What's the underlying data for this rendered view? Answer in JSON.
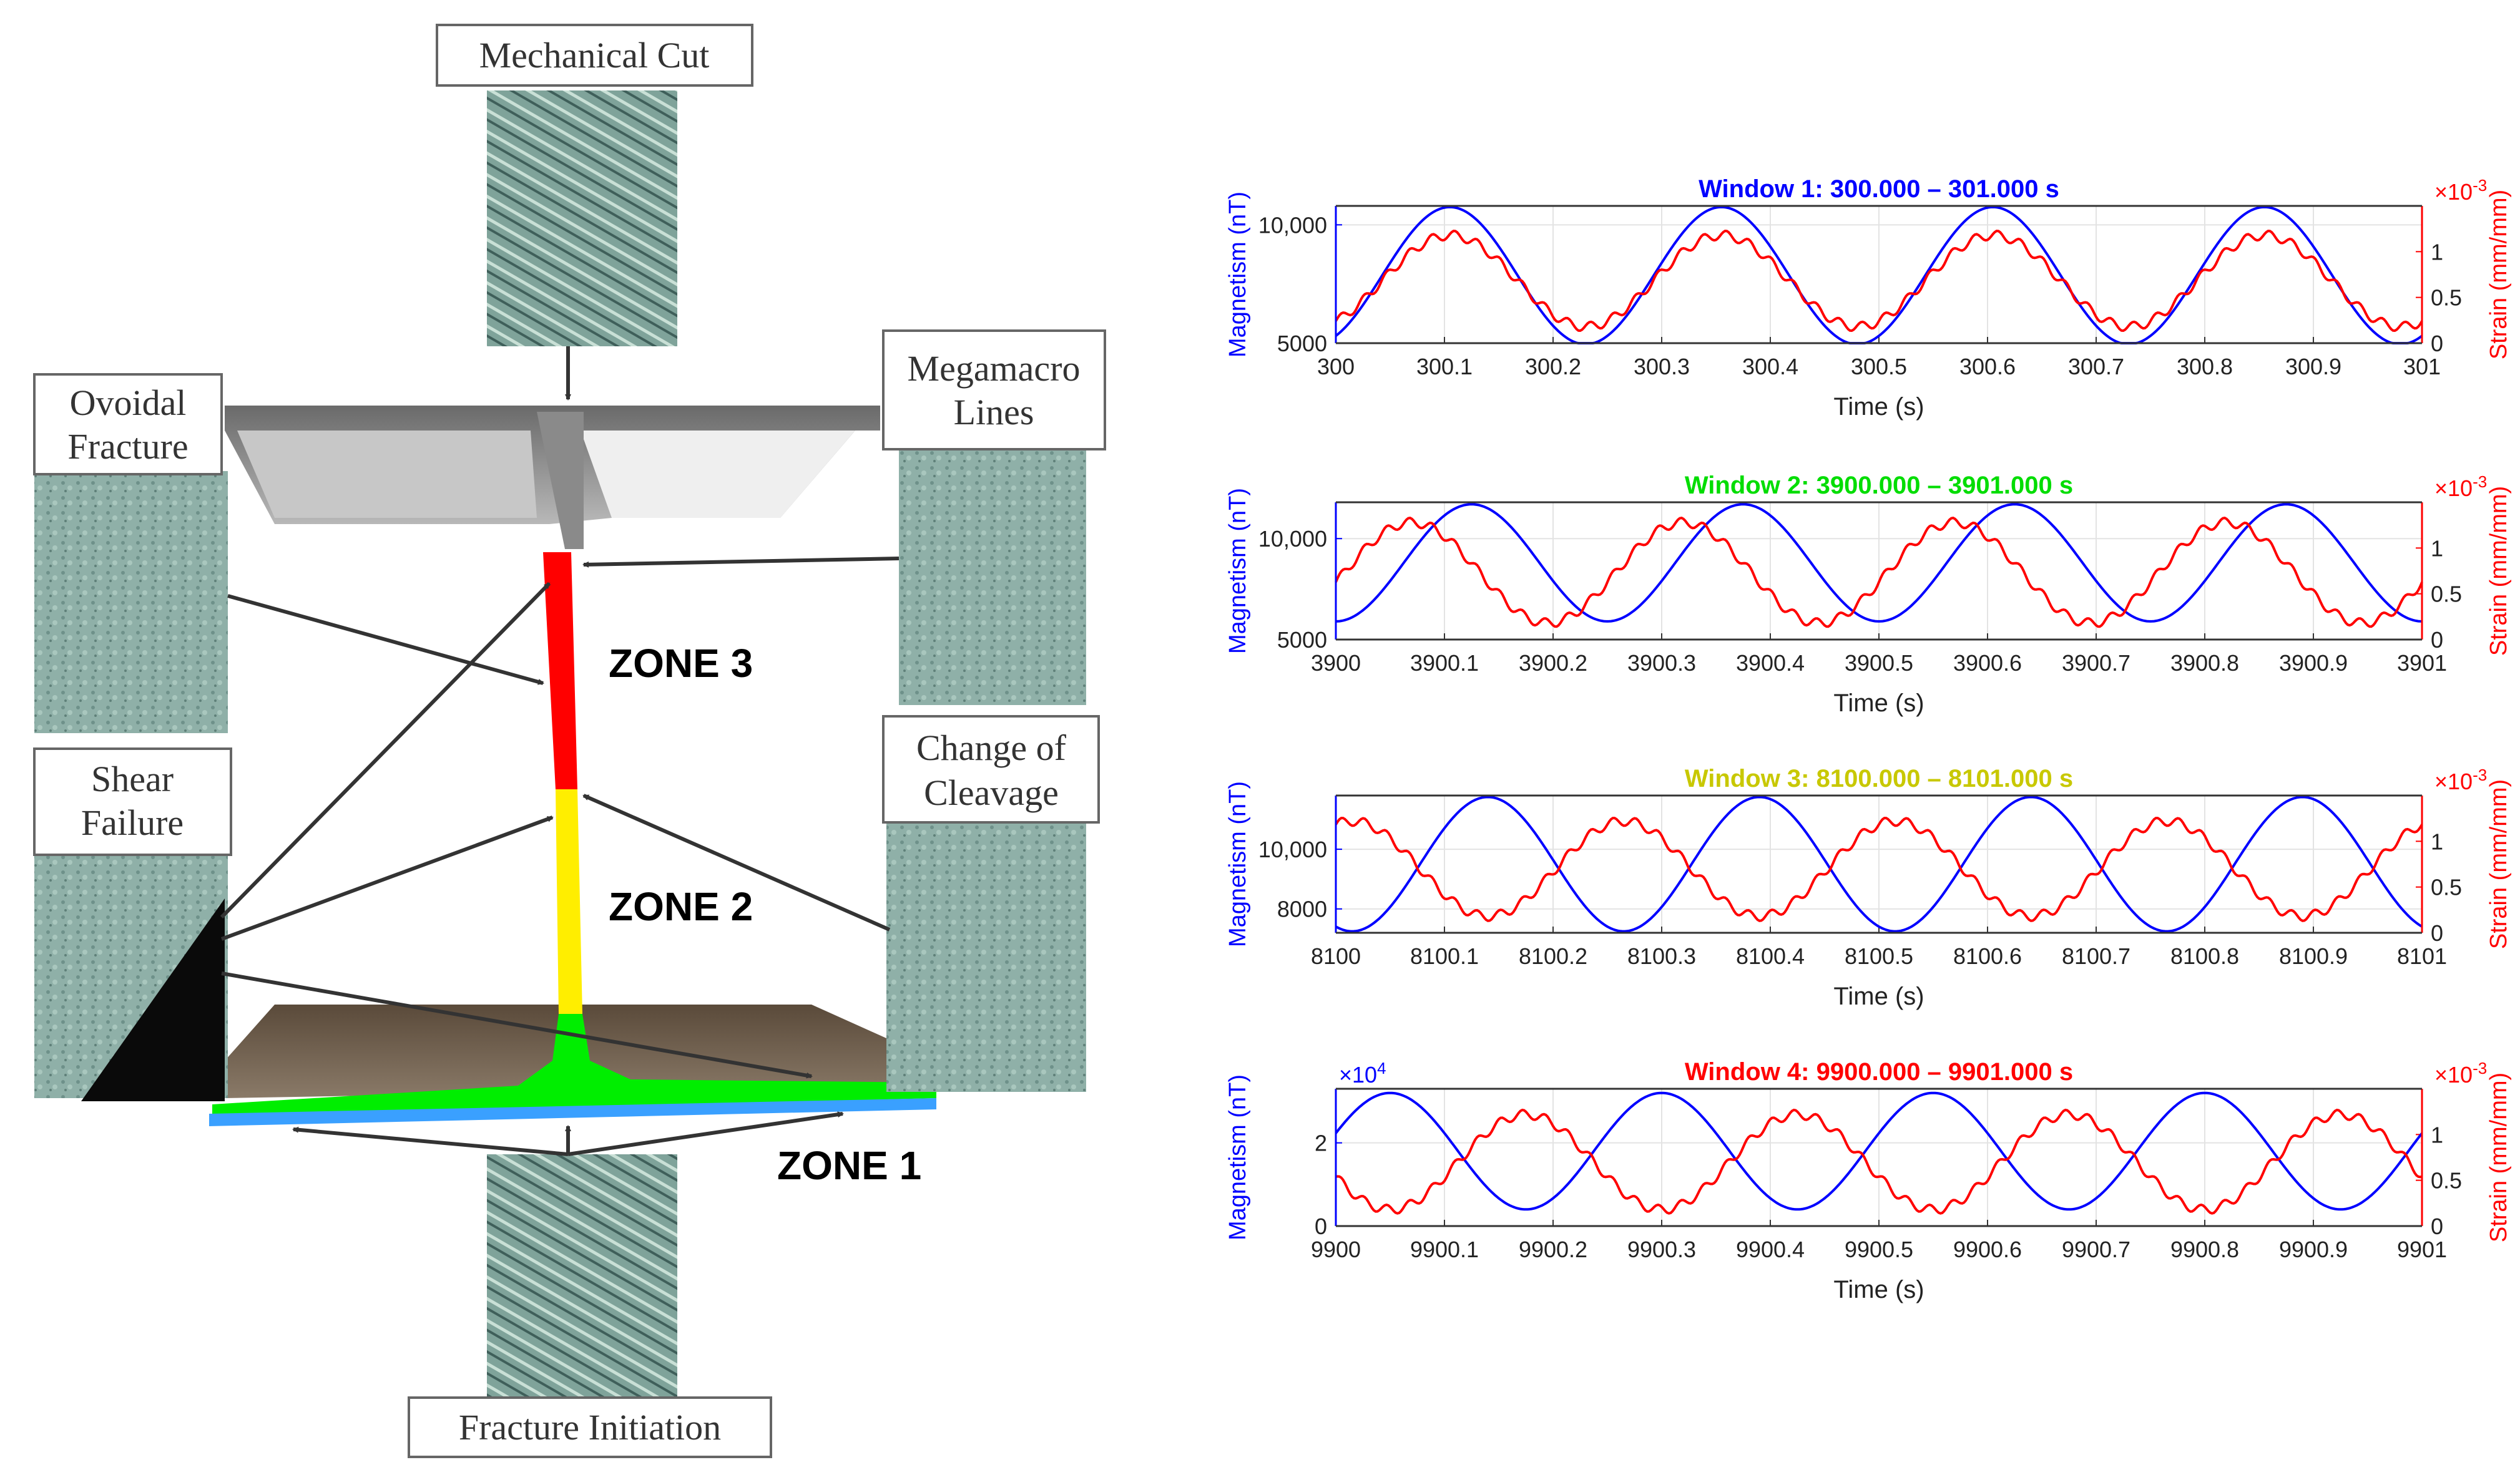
{
  "diagram": {
    "labels": {
      "mechanical_cut": "Mechanical Cut",
      "ovoidal_1": "Ovoidal",
      "ovoidal_2": "Fracture",
      "mega_1": "Megamacro",
      "mega_2": "Lines",
      "shear_1": "Shear",
      "shear_2": "Failure",
      "cleavage_1": "Change of",
      "cleavage_2": "Cleavage",
      "fracture_init": "Fracture Initiation"
    },
    "zones": {
      "zone3": "ZONE 3",
      "zone2": "ZONE 2",
      "zone1": "ZONE 1"
    },
    "colors": {
      "zone3": "#ff0000",
      "zone2": "#ffee00",
      "zone1": "#00ee00",
      "base_line": "#3aa0ff"
    }
  },
  "chart_data": [
    {
      "type": "line",
      "title": "Window 1: 300.000 – 301.000 s",
      "title_color": "#0000ff",
      "xlabel": "Time (s)",
      "ylabel_left": "Magnetism (nT)",
      "ylabel_right": "Strain (mm/mm)",
      "right_exponent": "-3",
      "x": [
        300,
        301
      ],
      "xticks": [
        "300",
        "300.1",
        "300.2",
        "300.3",
        "300.4",
        "300.5",
        "300.6",
        "300.7",
        "300.8",
        "300.9",
        "301"
      ],
      "ylim_left": [
        5000,
        10800
      ],
      "yticks_left": [
        "5000",
        "10,000"
      ],
      "ylim_right": [
        0,
        1.5
      ],
      "yticks_right": [
        "0",
        "0.5",
        "1"
      ],
      "series": [
        {
          "name": "Magnetism",
          "axis": "left",
          "color": "#0000ff",
          "model": {
            "mean": 7850,
            "amp": 2900,
            "period": 0.25,
            "peak_at": 0.105,
            "ripple": 0
          }
        },
        {
          "name": "Strain",
          "axis": "right",
          "color": "#ff0000",
          "model": {
            "mean": 0.68,
            "amp": 0.5,
            "period": 0.25,
            "peak_at": 0.105,
            "ripple": 0.05
          }
        }
      ]
    },
    {
      "type": "line",
      "title": "Window 2: 3900.000 – 3901.000 s",
      "title_color": "#00dd00",
      "xlabel": "Time (s)",
      "ylabel_left": "Magnetism (nT)",
      "ylabel_right": "Strain (mm/mm)",
      "right_exponent": "-3",
      "x": [
        3900,
        3901
      ],
      "xticks": [
        "3900",
        "3900.1",
        "3900.2",
        "3900.3",
        "3900.4",
        "3900.5",
        "3900.6",
        "3900.7",
        "3900.8",
        "3900.9",
        "3901"
      ],
      "ylim_left": [
        5000,
        11800
      ],
      "yticks_left": [
        "5000",
        "10,000"
      ],
      "ylim_right": [
        0,
        1.5
      ],
      "yticks_right": [
        "0",
        "0.5",
        "1"
      ],
      "series": [
        {
          "name": "Magnetism",
          "axis": "left",
          "color": "#0000ff",
          "model": {
            "mean": 8800,
            "amp": 2900,
            "period": 0.25,
            "peak_at": 0.125,
            "ripple": 0
          }
        },
        {
          "name": "Strain",
          "axis": "right",
          "color": "#ff0000",
          "model": {
            "mean": 0.73,
            "amp": 0.55,
            "period": 0.25,
            "peak_at": 0.07,
            "ripple": 0.05
          }
        }
      ]
    },
    {
      "type": "line",
      "title": "Window 3: 8100.000 – 8101.000 s",
      "title_color": "#c8c800",
      "xlabel": "Time (s)",
      "ylabel_left": "Magnetism (nT)",
      "ylabel_right": "Strain (mm/mm)",
      "right_exponent": "-3",
      "x": [
        8100,
        8101
      ],
      "xticks": [
        "8100",
        "8100.1",
        "8100.2",
        "8100.3",
        "8100.4",
        "8100.5",
        "8100.6",
        "8100.7",
        "8100.8",
        "8100.9",
        "8101"
      ],
      "ylim_left": [
        7200,
        11800
      ],
      "yticks_left": [
        "8000",
        "10,000"
      ],
      "ylim_right": [
        0,
        1.5
      ],
      "yticks_right": [
        "0",
        "0.5",
        "1"
      ],
      "series": [
        {
          "name": "Magnetism",
          "axis": "left",
          "color": "#0000ff",
          "model": {
            "mean": 9500,
            "amp": 2250,
            "period": 0.25,
            "peak_at": 0.14,
            "ripple": 0
          }
        },
        {
          "name": "Strain",
          "axis": "right",
          "color": "#ff0000",
          "model": {
            "mean": 0.7,
            "amp": 0.52,
            "period": 0.25,
            "peak_at": 0.015,
            "ripple": 0.05
          }
        }
      ]
    },
    {
      "type": "line",
      "title": "Window 4: 9900.000 – 9901.000 s",
      "title_color": "#ff0000",
      "xlabel": "Time (s)",
      "ylabel_left": "Magnetism (nT)",
      "ylabel_right": "Strain (mm/mm)",
      "left_exponent": "4",
      "right_exponent": "-3",
      "x": [
        9900,
        9901
      ],
      "xticks": [
        "9900",
        "9900.1",
        "9900.2",
        "9900.3",
        "9900.4",
        "9900.5",
        "9900.6",
        "9900.7",
        "9900.8",
        "9900.9",
        "9901"
      ],
      "ylim_left": [
        0,
        3.3
      ],
      "yticks_left": [
        "0",
        "2"
      ],
      "ylim_right": [
        0,
        1.5
      ],
      "yticks_right": [
        "0",
        "0.5",
        "1"
      ],
      "series": [
        {
          "name": "Magnetism",
          "axis": "left",
          "color": "#0000ff",
          "model": {
            "mean": 1.8,
            "amp": 1.4,
            "period": 0.25,
            "peak_at": 0.05,
            "ripple": 0
          }
        },
        {
          "name": "Strain",
          "axis": "right",
          "color": "#ff0000",
          "model": {
            "mean": 0.7,
            "amp": 0.52,
            "period": 0.25,
            "peak_at": 0.175,
            "ripple": 0.05
          }
        }
      ]
    }
  ]
}
